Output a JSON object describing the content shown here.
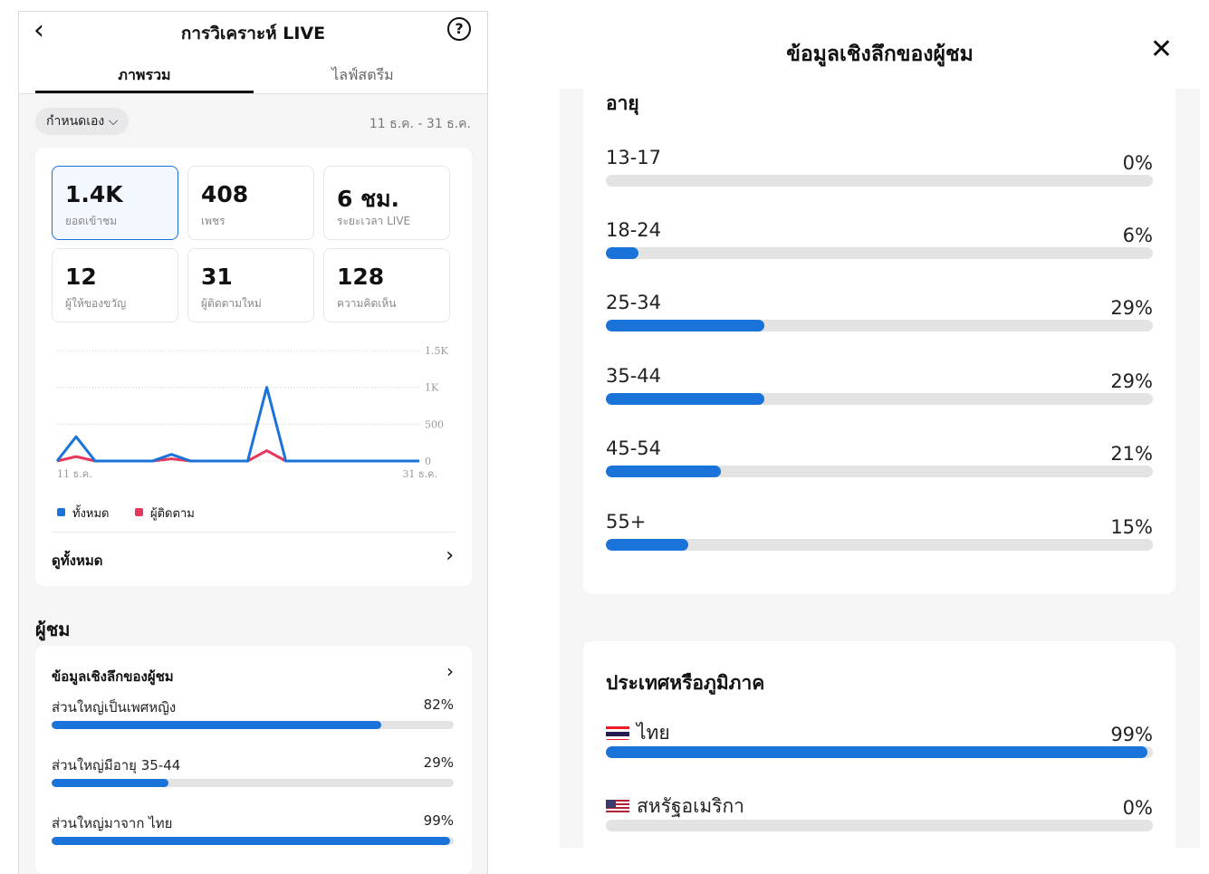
{
  "left": {
    "title": "การวิเคราะห์ LIVE",
    "tabs": [
      {
        "label": "ภาพรวม",
        "active": true
      },
      {
        "label": "ไลฟ์สตรีม",
        "active": false
      }
    ],
    "range_chip": "กำหนดเอง",
    "date_range": "11 ธ.ค. - 31 ธ.ค.",
    "stats": [
      {
        "value": "1.4K",
        "label": "ยอดเข้าชม",
        "selected": true
      },
      {
        "value": "408",
        "label": "เพชร"
      },
      {
        "value": "6 ชม.",
        "label": "ระยะเวลา LIVE"
      },
      {
        "value": "12",
        "label": "ผู้ให้ของขวัญ"
      },
      {
        "value": "31",
        "label": "ผู้ติดตามใหม่"
      },
      {
        "value": "128",
        "label": "ความคิดเห็น"
      }
    ],
    "chart_data": {
      "type": "line",
      "x_start_label": "11 ธ.ค.",
      "x_end_label": "31 ธ.ค.",
      "y_ticks": [
        "1.5K",
        "1K",
        "500",
        "0"
      ],
      "ylim": [
        0,
        1500
      ],
      "grid": true,
      "legend_position": "bottom-left",
      "series": [
        {
          "name": "ทั้งหมด",
          "color": "#1a73d8",
          "values": [
            0,
            330,
            0,
            0,
            0,
            0,
            90,
            0,
            0,
            0,
            0,
            1000,
            0,
            0,
            0,
            0,
            0,
            0,
            0,
            0
          ]
        },
        {
          "name": "ผู้ติดตาม",
          "color": "#e8365d",
          "values": [
            0,
            60,
            0,
            0,
            0,
            0,
            30,
            0,
            0,
            0,
            0,
            140,
            0,
            0,
            0,
            0,
            0,
            0,
            0,
            0
          ]
        }
      ]
    },
    "see_all": "ดูทั้งหมด",
    "viewers_heading": "ผู้ชม",
    "insight": {
      "title": "ข้อมูลเชิงลึกของผู้ชม",
      "rows": [
        {
          "label": "ส่วนใหญ่เป็นเพศหญิง",
          "percent_text": "82%",
          "value": 82
        },
        {
          "label": "ส่วนใหญ่มีอายุ 35-44",
          "percent_text": "29%",
          "value": 29
        },
        {
          "label": "ส่วนใหญ่มาจาก ไทย",
          "percent_text": "99%",
          "value": 99
        }
      ]
    }
  },
  "right": {
    "title": "ข้อมูลเชิงลึกของผู้ชม",
    "age_heading": "อายุ",
    "ages": [
      {
        "label": "13-17",
        "percent_text": "0%",
        "value": 0
      },
      {
        "label": "18-24",
        "percent_text": "6%",
        "value": 6
      },
      {
        "label": "25-34",
        "percent_text": "29%",
        "value": 29
      },
      {
        "label": "35-44",
        "percent_text": "29%",
        "value": 29
      },
      {
        "label": "45-54",
        "percent_text": "21%",
        "value": 21
      },
      {
        "label": "55+",
        "percent_text": "15%",
        "value": 15
      }
    ],
    "country_heading": "ประเทศหรือภูมิภาค",
    "countries": [
      {
        "label": "ไทย",
        "flag": "thailand-flag-icon",
        "percent_text": "99%",
        "value": 99
      },
      {
        "label": "สหรัฐอเมริกา",
        "flag": "usa-flag-icon",
        "percent_text": "0%",
        "value": 0
      }
    ]
  },
  "colors": {
    "accent": "#1a73d8",
    "follower": "#e8365d",
    "track": "#e3e3e3"
  }
}
